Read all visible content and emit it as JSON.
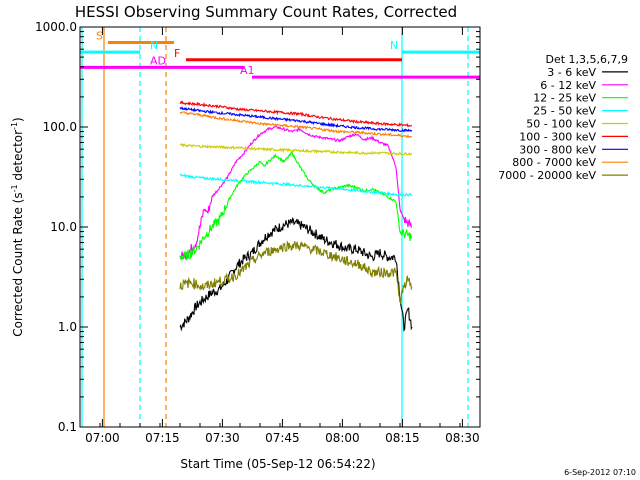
{
  "chart_data": {
    "type": "line",
    "title": "HESSI Observing Summary Count Rates, Corrected",
    "xlabel": "Start Time (05-Sep-12 06:54:22)",
    "ylabel": "Corrected Count Rate (s⁻¹ detector⁻¹)",
    "ylabel_base": "Corrected Count Rate (s",
    "ylabel_sup1": "-1",
    "ylabel_mid": " detector",
    "ylabel_sup2": "-1",
    "ylabel_end": ")",
    "x_unit": "minutes since 06:54:22",
    "xlim": [
      0,
      100
    ],
    "ylim": [
      0.1,
      1000
    ],
    "yscale": "log",
    "x_ticks": [
      {
        "t": 5.6,
        "label": "07:00"
      },
      {
        "t": 20.6,
        "label": "07:15"
      },
      {
        "t": 35.6,
        "label": "07:30"
      },
      {
        "t": 50.6,
        "label": "07:45"
      },
      {
        "t": 65.6,
        "label": "08:00"
      },
      {
        "t": 80.6,
        "label": "08:15"
      },
      {
        "t": 95.6,
        "label": "08:30"
      }
    ],
    "y_ticks": [
      {
        "v": 0.1,
        "label": "0.1"
      },
      {
        "v": 1,
        "label": "1.0"
      },
      {
        "v": 10,
        "label": "10.0"
      },
      {
        "v": 100,
        "label": "100.0"
      },
      {
        "v": 1000,
        "label": "1000.0"
      }
    ],
    "legend_header": "Det 1,3,5,6,7,9",
    "legend_placement": "right",
    "series": [
      {
        "name": "3 - 6 keV",
        "color": "#000000",
        "x": [
          25,
          27,
          29,
          31,
          33,
          35,
          37,
          39,
          41,
          43,
          45,
          47,
          49,
          51,
          53,
          55,
          57,
          59,
          61,
          63,
          65,
          67,
          69,
          71,
          73,
          75,
          77,
          79,
          80,
          81,
          82,
          83
        ],
        "y": [
          1.0,
          1.2,
          1.6,
          1.9,
          2.2,
          2.4,
          3.0,
          4.0,
          4.8,
          5.5,
          7.0,
          8.5,
          9.5,
          10.5,
          11.0,
          10.5,
          9.5,
          8.5,
          7.5,
          7.0,
          6.5,
          6.0,
          6.0,
          5.5,
          5.0,
          5.5,
          5.0,
          5.0,
          2.0,
          1.0,
          1.5,
          1.0
        ]
      },
      {
        "name": "6 - 12 keV",
        "color": "#ff00ff",
        "x": [
          25,
          27,
          29,
          30,
          31,
          32,
          33,
          35,
          37,
          39,
          41,
          43,
          45,
          47,
          49,
          51,
          53,
          55,
          57,
          59,
          61,
          63,
          65,
          67,
          69,
          71,
          73,
          75,
          77,
          79,
          80,
          81,
          83
        ],
        "y": [
          5.0,
          5.5,
          7.0,
          10.0,
          15.0,
          14.0,
          20.0,
          25.0,
          32.0,
          45.0,
          55.0,
          70.0,
          85.0,
          95.0,
          100.0,
          95.0,
          90.0,
          95.0,
          85.0,
          80.0,
          78.0,
          75.0,
          73.0,
          80.0,
          85.0,
          75.0,
          78.0,
          70.0,
          65.0,
          40.0,
          15.0,
          12.0,
          10.0
        ]
      },
      {
        "name": "12 - 25 keV",
        "color": "#00ff00",
        "x": [
          25,
          27,
          29,
          31,
          33,
          35,
          37,
          39,
          41,
          43,
          45,
          46,
          47,
          49,
          51,
          53,
          55,
          57,
          59,
          61,
          63,
          65,
          67,
          69,
          71,
          73,
          75,
          77,
          79,
          80,
          81,
          83
        ],
        "y": [
          5.0,
          5.2,
          6.0,
          8.0,
          10.0,
          12.0,
          18.0,
          25.0,
          32.0,
          38.0,
          45.0,
          40.0,
          45.0,
          52.0,
          45.0,
          55.0,
          40.0,
          30.0,
          25.0,
          22.0,
          24.0,
          25.0,
          26.0,
          25.0,
          23.0,
          24.0,
          22.0,
          20.0,
          18.0,
          9.0,
          8.5,
          8.0
        ]
      },
      {
        "name": "25 - 50 keV",
        "color": "#00ffff",
        "x": [
          25,
          30,
          35,
          40,
          45,
          50,
          55,
          60,
          65,
          70,
          75,
          80,
          83
        ],
        "y": [
          33.0,
          31.0,
          30.0,
          29.0,
          28.0,
          27.0,
          26.0,
          25.0,
          24.0,
          23.0,
          22.0,
          21.0,
          21.0
        ]
      },
      {
        "name": "50 - 100 keV",
        "color": "#cccc00",
        "x": [
          25,
          30,
          35,
          40,
          45,
          50,
          55,
          60,
          65,
          70,
          75,
          80,
          83
        ],
        "y": [
          66.0,
          64.0,
          63.0,
          62.0,
          60.0,
          59.0,
          58.0,
          57.0,
          56.0,
          55.0,
          55.0,
          54.0,
          54.0
        ]
      },
      {
        "name": "100 - 300 keV",
        "color": "#ff0000",
        "x": [
          25,
          30,
          35,
          40,
          45,
          50,
          55,
          60,
          65,
          70,
          75,
          80,
          83
        ],
        "y": [
          175.0,
          168.0,
          160.0,
          150.0,
          145.0,
          140.0,
          135.0,
          125.0,
          118.0,
          112.0,
          108.0,
          105.0,
          103.0
        ]
      },
      {
        "name": "300 - 800 keV",
        "color": "#0000ff",
        "x": [
          25,
          30,
          35,
          40,
          45,
          50,
          55,
          60,
          65,
          70,
          75,
          80,
          83
        ],
        "y": [
          155.0,
          145.0,
          138.0,
          132.0,
          126.0,
          120.0,
          115.0,
          108.0,
          102.0,
          98.0,
          95.0,
          93.0,
          92.0
        ]
      },
      {
        "name": "800 - 7000 keV",
        "color": "#ff8000",
        "x": [
          25,
          30,
          35,
          40,
          45,
          50,
          55,
          60,
          65,
          70,
          75,
          80,
          83
        ],
        "y": [
          140.0,
          132.0,
          122.0,
          115.0,
          108.0,
          104.0,
          100.0,
          95.0,
          90.0,
          88.0,
          85.0,
          82.0,
          80.0
        ]
      },
      {
        "name": "7000 - 20000 keV",
        "color": "#808000",
        "x": [
          25,
          28,
          31,
          34,
          37,
          40,
          43,
          46,
          49,
          52,
          55,
          58,
          61,
          64,
          67,
          70,
          73,
          76,
          79,
          80,
          81,
          82,
          83
        ],
        "y": [
          2.6,
          2.8,
          2.5,
          2.8,
          3.0,
          3.5,
          4.5,
          5.5,
          6.0,
          6.5,
          6.5,
          6.0,
          5.5,
          5.0,
          4.5,
          4.2,
          3.5,
          3.5,
          3.5,
          1.8,
          2.5,
          3.0,
          2.5
        ]
      }
    ],
    "flag_bars": [
      {
        "label": "S",
        "color": "#ff8000",
        "y": 700,
        "t0": 7.0,
        "t1": 23.5
      },
      {
        "label": "N",
        "color": "#00ffff",
        "y": 560,
        "t0": 0,
        "t1": 15.0
      },
      {
        "label": "N",
        "color": "#00ffff",
        "y": 560,
        "t0": 80.5,
        "t1": 100
      },
      {
        "label": "F",
        "color": "#ff0000",
        "y": 470,
        "t0": 26.5,
        "t1": 80.5
      },
      {
        "label": "AD",
        "color": "#ff00ff",
        "y": 395,
        "t0": 0,
        "t1": 41.0
      },
      {
        "label": "A1",
        "color": "#ff00ff",
        "y": 315,
        "t0": 43.0,
        "t1": 100
      }
    ],
    "vlines": [
      {
        "t": 0.5,
        "color": "#00ffff",
        "style": "solid"
      },
      {
        "t": 6.0,
        "color": "#ff8000",
        "style": "solid"
      },
      {
        "t": 15.0,
        "color": "#00ffff",
        "style": "dashed"
      },
      {
        "t": 21.5,
        "color": "#ff8000",
        "style": "dashed"
      },
      {
        "t": 80.5,
        "color": "#00ffff",
        "style": "solid"
      },
      {
        "t": 97.0,
        "color": "#00ffff",
        "style": "dashed"
      }
    ],
    "footer": "6-Sep-2012 07:10"
  }
}
